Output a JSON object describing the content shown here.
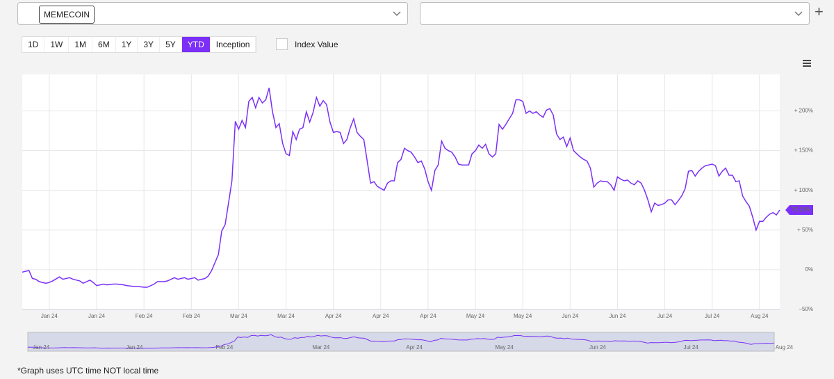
{
  "ui": {
    "selector_1": "MEMECOIN",
    "add_button": "+",
    "range_buttons": [
      "1D",
      "1W",
      "1M",
      "6M",
      "1Y",
      "3Y",
      "5Y",
      "YTD",
      "Inception"
    ],
    "active_range": "YTD",
    "index_value_label": "Index Value",
    "footnote": "*Graph uses UTC time NOT local time"
  },
  "chart_data": {
    "type": "line",
    "color": "#7b2ff7",
    "grid": true,
    "x": [
      0,
      2,
      3,
      4,
      5,
      7,
      8,
      9,
      11,
      12,
      14,
      15,
      17,
      18,
      20,
      21,
      22,
      24,
      25,
      27,
      28,
      30,
      31,
      33,
      34,
      36,
      37,
      39,
      40,
      42,
      43,
      45,
      46,
      48,
      49,
      51,
      52,
      54,
      55,
      56,
      58,
      59,
      60,
      61,
      62,
      63,
      64,
      65,
      66,
      67,
      68,
      69,
      70,
      71,
      72,
      73,
      74,
      75,
      76,
      77,
      78,
      79,
      80,
      81,
      82,
      83,
      84,
      85,
      86,
      87,
      88,
      89,
      90,
      91,
      92,
      93,
      94,
      95,
      96,
      97,
      98,
      99,
      100,
      101,
      102,
      103,
      104,
      105,
      107,
      108,
      109,
      110,
      111,
      112,
      113,
      114,
      115,
      116,
      117,
      118,
      119,
      120,
      121,
      122,
      123,
      124,
      125,
      126,
      127,
      128,
      129,
      130,
      131,
      132,
      133,
      134,
      135,
      136,
      137,
      138,
      139,
      140,
      141,
      142,
      143,
      144,
      145,
      146,
      147,
      148,
      149,
      150,
      151,
      152,
      153,
      154,
      155,
      156,
      157,
      158,
      159,
      160,
      161,
      162,
      163,
      164,
      165,
      166,
      167,
      168,
      169,
      170,
      171,
      172,
      173,
      174,
      175,
      176,
      177,
      178,
      179,
      180,
      181,
      182,
      183,
      184,
      185,
      186,
      187,
      188,
      189,
      190,
      191,
      192,
      193,
      194,
      195,
      196,
      197,
      198,
      199,
      200,
      201,
      202,
      203,
      204,
      205,
      206,
      207,
      208,
      209,
      210,
      211,
      212,
      213,
      214,
      215,
      216,
      217,
      218,
      219,
      220,
      221,
      222,
      223,
      224
    ],
    "values": [
      -3,
      -1,
      -11,
      -12,
      -15,
      -17,
      -16,
      -14,
      -9,
      -12,
      -10,
      -12,
      -14,
      -17,
      -13,
      -16,
      -20,
      -18,
      -19,
      -18,
      -18,
      -19,
      -20,
      -21,
      -21,
      -22,
      -22,
      -18,
      -15,
      -15,
      -14,
      -10,
      -12,
      -10,
      -12,
      -10,
      -13,
      -11,
      -8,
      -1,
      19,
      49,
      57,
      84,
      112,
      187,
      177,
      188,
      179,
      212,
      217,
      204,
      217,
      210,
      214,
      229,
      199,
      179,
      184,
      159,
      146,
      144,
      174,
      164,
      177,
      179,
      199,
      186,
      198,
      217,
      206,
      213,
      208,
      186,
      173,
      174,
      173,
      159,
      164,
      179,
      190,
      173,
      168,
      164,
      137,
      109,
      111,
      105,
      100,
      109,
      112,
      112,
      135,
      139,
      153,
      150,
      148,
      142,
      135,
      137,
      127,
      111,
      100,
      125,
      132,
      162,
      153,
      150,
      148,
      142,
      133,
      132,
      132,
      132,
      146,
      150,
      157,
      153,
      158,
      146,
      142,
      146,
      183,
      177,
      183,
      190,
      197,
      214,
      214,
      212,
      197,
      200,
      197,
      199,
      195,
      192,
      201,
      203,
      195,
      171,
      164,
      167,
      155,
      166,
      150,
      146,
      142,
      139,
      137,
      128,
      104,
      109,
      112,
      111,
      111,
      107,
      100,
      117,
      114,
      112,
      113,
      109,
      107,
      112,
      109,
      100,
      88,
      73,
      84,
      81,
      82,
      84,
      88,
      88,
      82,
      87,
      93,
      102,
      124,
      125,
      118,
      124,
      128,
      131,
      132,
      133,
      131,
      118,
      124,
      128,
      119,
      119,
      111,
      112,
      93,
      86,
      80,
      66,
      50,
      61,
      61,
      66,
      70,
      72,
      69,
      75.23
    ],
    "end_label": {
      "value": 75.23,
      "label": "75.23%"
    },
    "xlim": [
      0,
      224
    ],
    "xticks": [
      {
        "value": 8,
        "label": "Jan 24"
      },
      {
        "value": 22,
        "label": "Jan 24"
      },
      {
        "value": 36,
        "label": "Feb 24"
      },
      {
        "value": 50,
        "label": "Feb 24"
      },
      {
        "value": 64,
        "label": "Mar 24"
      },
      {
        "value": 78,
        "label": "Mar 24"
      },
      {
        "value": 92,
        "label": "Apr 24"
      },
      {
        "value": 106,
        "label": "Apr 24"
      },
      {
        "value": 120,
        "label": "Apr 24"
      },
      {
        "value": 134,
        "label": "May 24"
      },
      {
        "value": 148,
        "label": "May 24"
      },
      {
        "value": 162,
        "label": "Jun 24"
      },
      {
        "value": 176,
        "label": "Jun 24"
      },
      {
        "value": 190,
        "label": "Jul 24"
      },
      {
        "value": 204,
        "label": "Jul 24"
      },
      {
        "value": 218,
        "label": "Aug 24"
      }
    ],
    "ylim": [
      -50,
      246
    ],
    "yticks": [
      {
        "value": -50,
        "label": "−50%"
      },
      {
        "value": 0,
        "label": "0%"
      },
      {
        "value": 50,
        "label": "+ 50%"
      },
      {
        "value": 100,
        "label": "+ 100%"
      },
      {
        "value": 150,
        "label": "+ 150%"
      },
      {
        "value": 200,
        "label": "+ 200%"
      }
    ],
    "navigator_xticks": [
      {
        "value": 4,
        "label": "Jan 24"
      },
      {
        "value": 32,
        "label": "Jan 24"
      },
      {
        "value": 59,
        "label": "Feb 24"
      },
      {
        "value": 88,
        "label": "Mar 24"
      },
      {
        "value": 116,
        "label": "Apr 24"
      },
      {
        "value": 143,
        "label": "May 24"
      },
      {
        "value": 171,
        "label": "Jun 24"
      },
      {
        "value": 199,
        "label": "Jul 24"
      },
      {
        "value": 227,
        "label": "Aug 24"
      }
    ]
  }
}
